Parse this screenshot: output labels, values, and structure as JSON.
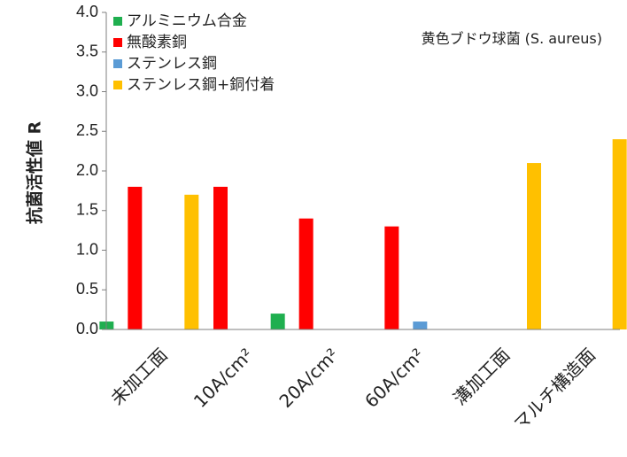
{
  "chart_data": {
    "type": "bar",
    "ylabel": "抗菌活性値 R",
    "annotation": "黄色ブドウ球菌 (S. aureus)",
    "ylim": [
      0,
      4.0
    ],
    "yticks": [
      "0.0",
      "0.5",
      "1.0",
      "1.5",
      "2.0",
      "2.5",
      "3.0",
      "3.5",
      "4.0"
    ],
    "categories": [
      "未加工面",
      "10A/cm²",
      "20A/cm²",
      "60A/cm²",
      "溝加工面",
      "マルチ構造面"
    ],
    "legend_position": "top-left",
    "series": [
      {
        "name": "アルミニウム合金",
        "color": "#1faf4f",
        "values": [
          0.1,
          null,
          0.2,
          null,
          null,
          null
        ]
      },
      {
        "name": "無酸素銅",
        "color": "#ff0000",
        "values": [
          1.8,
          1.8,
          1.4,
          1.3,
          null,
          null
        ]
      },
      {
        "name": "ステンレス鋼",
        "color": "#5b9bd5",
        "values": [
          null,
          null,
          null,
          0.1,
          null,
          null
        ]
      },
      {
        "name": "ステンレス鋼+銅付着",
        "color": "#ffc000",
        "values": [
          1.7,
          null,
          null,
          null,
          2.1,
          2.4
        ]
      }
    ]
  }
}
